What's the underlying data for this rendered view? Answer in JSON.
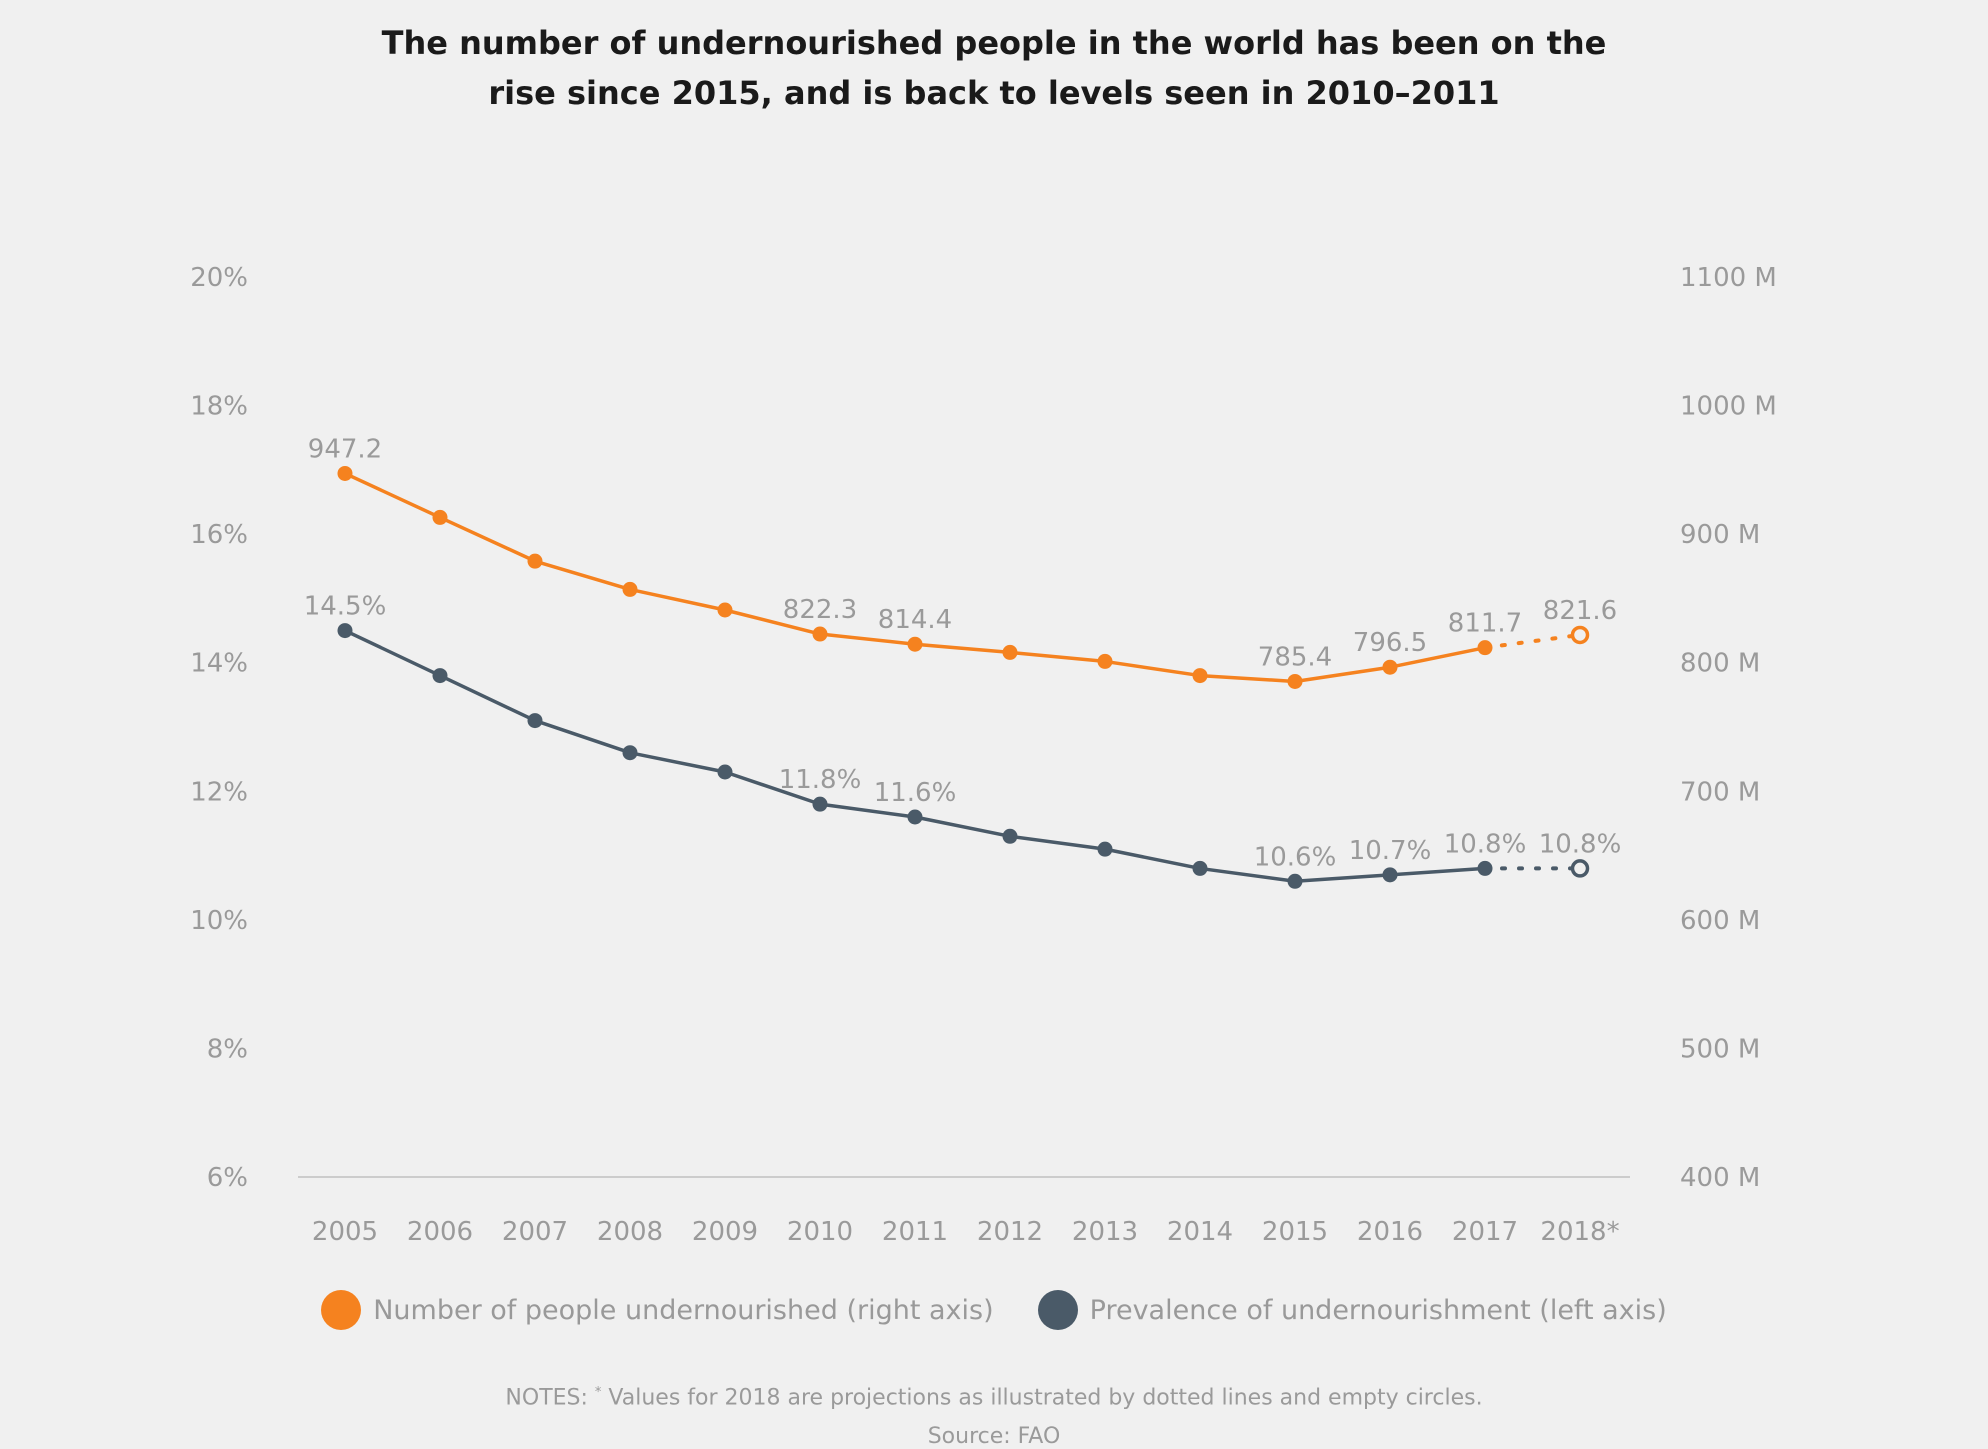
{
  "title_lines": [
    "The number of undernourished people in the world has been on the",
    "rise since 2015, and is back to levels seen in 2010–2011"
  ],
  "chart_data": {
    "type": "line",
    "title": "The number of undernourished people in the world has been on the rise since 2015, and is back to levels seen in 2010–2011",
    "categories": [
      "2005",
      "2006",
      "2007",
      "2008",
      "2009",
      "2010",
      "2011",
      "2012",
      "2013",
      "2014",
      "2015",
      "2016",
      "2017",
      "2018*"
    ],
    "projected_from_index": 12,
    "left_axis": {
      "ylim": [
        6,
        20
      ],
      "ticks": [
        6,
        8,
        10,
        12,
        14,
        16,
        18,
        20
      ],
      "tick_labels": [
        "6%",
        "8%",
        "10%",
        "12%",
        "14%",
        "16%",
        "18%",
        "20%"
      ]
    },
    "right_axis": {
      "ylim": [
        400,
        1100
      ],
      "ticks": [
        400,
        500,
        600,
        700,
        800,
        900,
        1000,
        1100
      ],
      "tick_labels": [
        "400 M",
        "500 M",
        "600 M",
        "700 M",
        "800 M",
        "900 M",
        "1000 M",
        "1100 M"
      ]
    },
    "grid": false,
    "series": [
      {
        "name": "Number of people undernourished (right axis)",
        "axis": "right",
        "color": "#f5821f",
        "values": [
          947.2,
          913,
          879,
          857,
          841,
          822.3,
          814.4,
          808,
          801,
          790,
          785.4,
          796.5,
          811.7,
          821.6
        ],
        "labels": [
          "947.2",
          "",
          "",
          "",
          "",
          "822.3",
          "814.4",
          "",
          "",
          "",
          "785.4",
          "796.5",
          "811.7",
          "821.6"
        ]
      },
      {
        "name": "Prevalence of undernourishment (left axis)",
        "axis": "left",
        "color": "#4a5a68",
        "values": [
          14.5,
          13.8,
          13.1,
          12.6,
          12.3,
          11.8,
          11.6,
          11.3,
          11.1,
          10.8,
          10.6,
          10.7,
          10.8,
          10.8
        ],
        "labels": [
          "14.5%",
          "",
          "",
          "",
          "",
          "11.8%",
          "11.6%",
          "",
          "",
          "",
          "10.6%",
          "10.7%",
          "10.8%",
          "10.8%"
        ]
      }
    ],
    "legend_position": "bottom"
  },
  "notes": {
    "prefix": "NOTES: ",
    "mark": "*",
    "text": " Values for 2018 are projections as illustrated by dotted lines and empty circles."
  },
  "source": "Source: FAO"
}
